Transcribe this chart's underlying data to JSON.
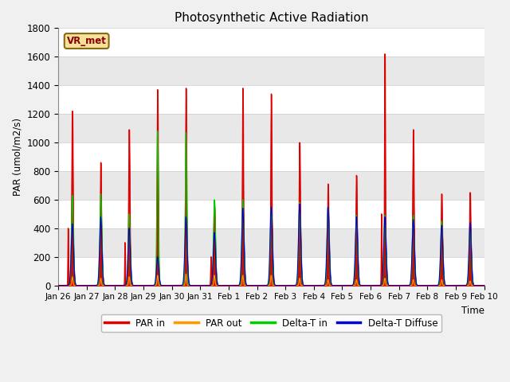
{
  "title": "Photosynthetic Active Radiation",
  "ylabel": "PAR (umol/m2/s)",
  "xlabel": "Time",
  "watermark": "VR_met",
  "ylim": [
    0,
    1800
  ],
  "yticks": [
    0,
    200,
    400,
    600,
    800,
    1000,
    1200,
    1400,
    1600,
    1800
  ],
  "fig_bg_color": "#f0f0f0",
  "plot_bg_color": "#ffffff",
  "alt_band_color": "#e0e0e0",
  "colors": {
    "PAR in": "#dd0000",
    "PAR out": "#ff9900",
    "Delta-T in": "#00cc00",
    "Delta-T Diffuse": "#0000cc"
  },
  "xtick_labels": [
    "Jan 26",
    "Jan 27",
    "Jan 28",
    "Jan 29",
    "Jan 30",
    "Jan 31",
    "Feb 1",
    "Feb 2",
    "Feb 3",
    "Feb 4",
    "Feb 5",
    "Feb 6",
    "Feb 7",
    "Feb 8",
    "Feb 9",
    "Feb 10"
  ],
  "num_days": 15,
  "pts_per_day": 288,
  "par_in_peaks": [
    1220,
    860,
    1090,
    1370,
    1380,
    550,
    1380,
    1340,
    1000,
    710,
    770,
    1620,
    1090,
    640,
    650
  ],
  "par_out_peaks": [
    60,
    50,
    60,
    70,
    80,
    70,
    70,
    70,
    50,
    40,
    40,
    50,
    40,
    40,
    30
  ],
  "delta_t_in_peaks": [
    630,
    640,
    500,
    1080,
    1070,
    600,
    600,
    550,
    580,
    550,
    490,
    490,
    490,
    450,
    440
  ],
  "delta_t_diff_peaks": [
    430,
    480,
    400,
    200,
    480,
    370,
    540,
    550,
    570,
    550,
    480,
    480,
    460,
    420,
    440
  ],
  "par_in_width": [
    3,
    2.5,
    3,
    2.5,
    2.5,
    3.5,
    2.5,
    2.5,
    3,
    3,
    3,
    2,
    3,
    3,
    3
  ],
  "par_out_width": [
    2,
    2,
    2,
    2,
    2,
    2,
    2,
    2,
    2,
    2,
    2,
    2,
    2,
    2,
    2
  ],
  "dt_in_width": [
    4,
    4,
    4,
    3,
    3,
    4,
    4,
    4,
    4,
    4,
    4,
    4,
    4,
    4,
    4
  ],
  "dt_diff_width": [
    4,
    4,
    4,
    4,
    4,
    4,
    4,
    4,
    4,
    4,
    4,
    4,
    4,
    4,
    4
  ]
}
